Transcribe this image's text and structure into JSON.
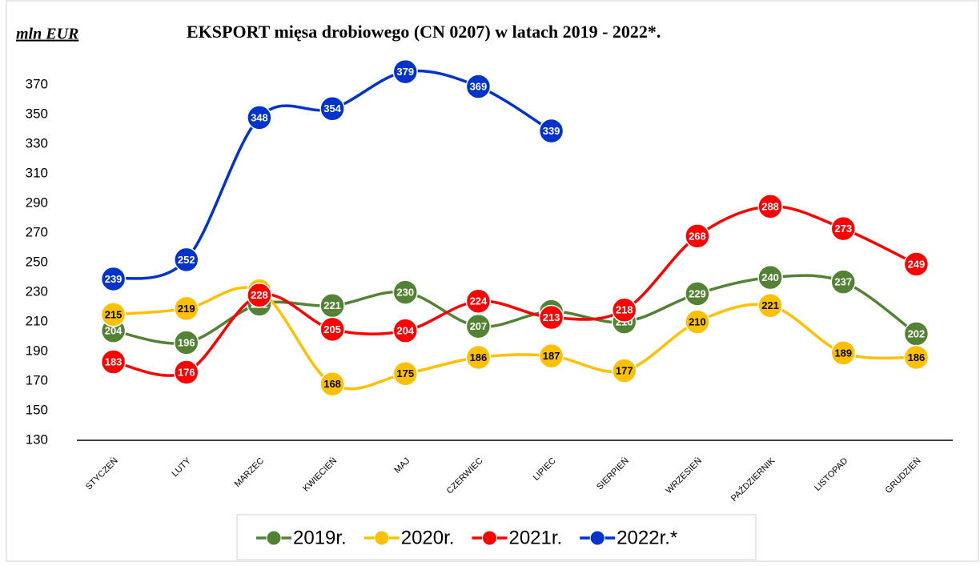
{
  "chart_data": {
    "type": "line",
    "title": "EKSPORT mięsa drobiowego (CN 0207) w latach 2019 - 2022*.",
    "y_label": "mln EUR",
    "categories": [
      "STYCZEŃ",
      "LUTY",
      "MARZEC",
      "KWIECIEŃ",
      "MAJ",
      "CZERWIEC",
      "LIPIEC",
      "SIERPIEŃ",
      "WRZESIEŃ",
      "PAŹDZIERNIK",
      "LISTOPAD",
      "GRUDZIEŃ"
    ],
    "series": [
      {
        "name": "2019r.",
        "color": "#548235",
        "label_color": "#ffffff",
        "values": [
          204,
          196,
          222,
          221,
          230,
          207,
          217,
          210,
          229,
          240,
          237,
          202
        ]
      },
      {
        "name": "2020r.",
        "color": "#ffc000",
        "label_color": "#000000",
        "values": [
          215,
          219,
          231,
          168,
          175,
          186,
          187,
          177,
          210,
          221,
          189,
          186
        ]
      },
      {
        "name": "2021r.",
        "color": "#ff0000",
        "label_color": "#ffffff",
        "values": [
          183,
          176,
          228,
          205,
          204,
          224,
          213,
          218,
          268,
          288,
          273,
          249
        ]
      },
      {
        "name": "2022r.*",
        "color": "#0033cc",
        "label_color": "#ffffff",
        "values": [
          239,
          252,
          348,
          354,
          379,
          369,
          339,
          null,
          null,
          null,
          null,
          null
        ]
      }
    ],
    "ylim": [
      130,
      395
    ],
    "yticks": [
      130,
      150,
      170,
      190,
      210,
      230,
      250,
      270,
      290,
      310,
      330,
      350,
      370
    ],
    "grid": false,
    "legend": "bottom"
  }
}
